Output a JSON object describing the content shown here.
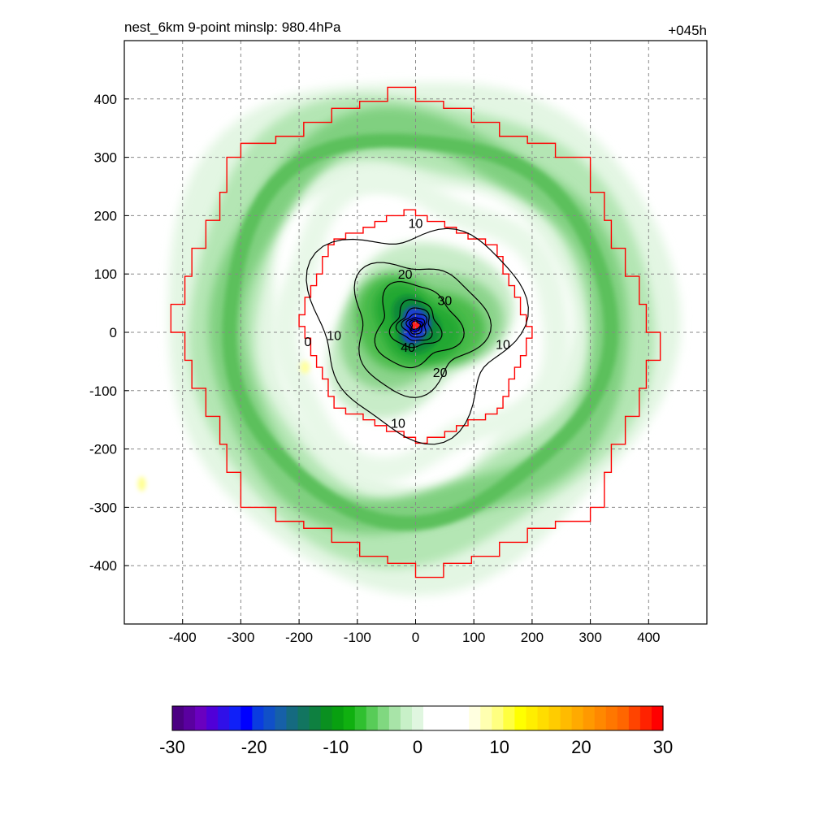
{
  "chart_data": {
    "type": "heatmap",
    "title_left": "nest_6km  9-point minslp: 980.4hPa",
    "title_right": "+045h",
    "xlabel": "",
    "ylabel": "",
    "xlim": [
      -500,
      500
    ],
    "ylim": [
      -500,
      500
    ],
    "x_ticks": [
      -400,
      -300,
      -200,
      -100,
      0,
      100,
      200,
      300,
      400
    ],
    "y_ticks": [
      400,
      300,
      200,
      100,
      0,
      -100,
      -200,
      -300,
      -400
    ],
    "grid": true,
    "colorbar": {
      "min": -30,
      "max": 30,
      "ticks": [
        -30,
        -20,
        -10,
        0,
        10,
        20,
        30
      ],
      "colors": [
        "#4b0082",
        "#5a00a0",
        "#6a00c0",
        "#5000d8",
        "#3010e8",
        "#1020f8",
        "#0000ff",
        "#0a3ce0",
        "#1050c8",
        "#1660a8",
        "#156a80",
        "#127560",
        "#0e8040",
        "#0a9020",
        "#08a010",
        "#10b010",
        "#30c030",
        "#58cc58",
        "#80d880",
        "#a8e4a8",
        "#c8f0c8",
        "#e0f6e0",
        "#ffffff",
        "#ffffff",
        "#ffffff",
        "#ffffff",
        "#ffffe0",
        "#ffffb0",
        "#ffff80",
        "#ffff40",
        "#ffff00",
        "#ffee00",
        "#ffdd00",
        "#ffcc00",
        "#ffbb00",
        "#ffaa00",
        "#ff9900",
        "#ff8800",
        "#ff7700",
        "#ff6600",
        "#ff4400",
        "#ff2200",
        "#ff0000"
      ]
    },
    "contour_levels": [
      10,
      20,
      30,
      40
    ],
    "contour_labels": [
      {
        "text": "10",
        "x": 0,
        "y": 187
      },
      {
        "text": "10",
        "x": -140,
        "y": -5
      },
      {
        "text": "10",
        "x": 150,
        "y": -20
      },
      {
        "text": "10",
        "x": -30,
        "y": -155
      },
      {
        "text": "0",
        "x": -185,
        "y": -15
      },
      {
        "text": "20",
        "x": -18,
        "y": 100
      },
      {
        "text": "20",
        "x": 42,
        "y": -68
      },
      {
        "text": "30",
        "x": 50,
        "y": 55
      },
      {
        "text": "40",
        "x": -13,
        "y": -25
      }
    ],
    "red_box_radii": [
      420,
      200
    ],
    "center": [
      0,
      12
    ]
  }
}
